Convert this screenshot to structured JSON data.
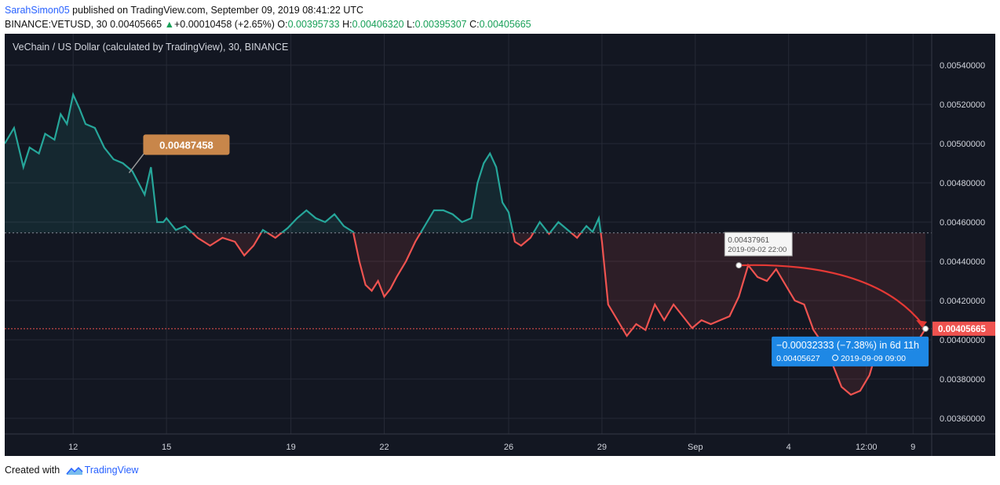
{
  "header": {
    "author": "SarahSimon05",
    "published": " published on TradingView.com, September 09, 2019 08:41:22 UTC",
    "symbol": "BINANCE:VETUSD, 30",
    "last": "0.00405665",
    "change_arrow": "▲",
    "change": "+0.00010458 (+2.65%)",
    "o_label": "O:",
    "o_val": "0.00395733",
    "h_label": "H:",
    "h_val": "0.00406320",
    "l_label": "L:",
    "l_val": "0.00395307",
    "c_label": "C:",
    "c_val": "0.00405665"
  },
  "footer": {
    "created_with": "Created with",
    "brand": "TradingView"
  },
  "colors": {
    "background": "#131722",
    "grid": "#262a36",
    "up": "#26a69a",
    "down": "#ef5350",
    "axis_text": "#d1d4dc",
    "price_tag": "#ef5350",
    "ruler": "#1e88e5",
    "label_orange": "#c8864a"
  },
  "chart_data": {
    "type": "area",
    "title": "VeChain / US Dollar (calculated by TradingView), 30, BINANCE",
    "ylim": [
      0.00352,
      0.00556
    ],
    "y_ticks": [
      "0.00360000",
      "0.00380000",
      "0.00400000",
      "0.00420000",
      "0.00440000",
      "0.00460000",
      "0.00480000",
      "0.00500000",
      "0.00520000",
      "0.00540000"
    ],
    "x_ticks": [
      {
        "label": "12",
        "day": 2
      },
      {
        "label": "15",
        "day": 5
      },
      {
        "label": "19",
        "day": 9
      },
      {
        "label": "22",
        "day": 12
      },
      {
        "label": "26",
        "day": 16
      },
      {
        "label": "29",
        "day": 19
      },
      {
        "label": "Sep",
        "day": 22
      },
      {
        "label": "4",
        "day": 25
      },
      {
        "label": "12:00",
        "day": 27.5
      },
      {
        "label": "9",
        "day": 29
      }
    ],
    "xlim": [
      -0.2,
      29.6
    ],
    "baseline": 0.004545,
    "last_price": 0.00405665,
    "last_price_label": "0.00405665",
    "series": [
      {
        "x": [
          -0.2,
          0.1,
          0.4,
          0.6,
          0.9,
          1.1,
          1.4,
          1.6,
          1.8,
          2.0,
          2.2,
          2.4,
          2.7,
          3.0,
          3.3,
          3.6,
          3.9,
          4.1,
          4.3,
          4.5,
          4.7,
          4.9,
          5.0,
          5.3,
          5.6,
          6.0,
          6.4,
          6.8,
          7.2,
          7.5,
          7.8,
          8.1,
          8.5,
          8.9,
          9.2,
          9.5,
          9.8,
          10.1,
          10.4,
          10.7,
          11.0,
          11.2,
          11.4,
          11.6,
          11.8,
          12.0,
          12.2,
          12.4,
          12.7,
          13.0,
          13.3,
          13.6,
          13.9,
          14.2,
          14.5,
          14.8,
          15.0,
          15.2,
          15.4,
          15.6,
          15.8,
          16.0,
          16.2,
          16.4,
          16.7,
          17.0,
          17.3,
          17.6,
          17.9,
          18.2,
          18.5,
          18.7,
          18.9,
          19.0,
          19.2,
          19.5,
          19.8,
          20.1,
          20.4,
          20.7,
          21.0,
          21.3,
          21.6,
          21.9,
          22.2,
          22.5,
          22.8,
          23.1,
          23.4,
          23.7,
          24.0,
          24.3,
          24.6,
          24.9,
          25.2,
          25.5,
          25.8,
          26.1,
          26.4,
          26.7,
          27.0,
          27.3,
          27.6,
          27.9,
          28.2,
          28.5,
          28.8,
          29.1,
          29.4
        ],
        "y": [
          0.005,
          0.00508,
          0.00488,
          0.00498,
          0.00495,
          0.00505,
          0.00502,
          0.00515,
          0.0051,
          0.00525,
          0.00518,
          0.0051,
          0.00508,
          0.00498,
          0.00492,
          0.0049,
          0.00486,
          0.0048,
          0.00474,
          0.00488,
          0.0046,
          0.0046,
          0.00462,
          0.00456,
          0.00458,
          0.00452,
          0.00448,
          0.00452,
          0.0045,
          0.00443,
          0.00448,
          0.00456,
          0.00452,
          0.00457,
          0.00462,
          0.00466,
          0.00462,
          0.0046,
          0.00464,
          0.00458,
          0.00455,
          0.0044,
          0.00428,
          0.00425,
          0.0043,
          0.00422,
          0.00426,
          0.00432,
          0.0044,
          0.0045,
          0.00458,
          0.00466,
          0.00466,
          0.00464,
          0.0046,
          0.00462,
          0.0048,
          0.0049,
          0.00495,
          0.00488,
          0.0047,
          0.00465,
          0.0045,
          0.00448,
          0.00452,
          0.0046,
          0.00454,
          0.0046,
          0.00456,
          0.00452,
          0.00458,
          0.00455,
          0.00462,
          0.0045,
          0.00418,
          0.0041,
          0.00402,
          0.00408,
          0.00405,
          0.00418,
          0.0041,
          0.00418,
          0.00412,
          0.00406,
          0.0041,
          0.00408,
          0.0041,
          0.00412,
          0.00422,
          0.00438,
          0.00432,
          0.0043,
          0.00436,
          0.00428,
          0.0042,
          0.00418,
          0.00405,
          0.00398,
          0.00388,
          0.00376,
          0.00372,
          0.00374,
          0.00382,
          0.00398,
          0.004,
          0.00394,
          0.00392,
          0.00398,
          0.00405665
        ]
      }
    ],
    "annotations": [
      {
        "text": "0.00487458",
        "x": 4.0,
        "y": 0.00487458
      },
      {
        "text": "0.00437961",
        "date": "2019-09-02 22:00",
        "x": 23.4,
        "y": 0.00437961
      }
    ],
    "measure": {
      "from": {
        "x": 23.4,
        "y": 0.00437961
      },
      "to": {
        "x": 29.4,
        "y": 0.00405627
      },
      "line1": "−0.00032333 (−7.38%) in 6d 11h",
      "line2_price": "0.00405627",
      "line2_date": "2019-09-09  09:00"
    }
  }
}
